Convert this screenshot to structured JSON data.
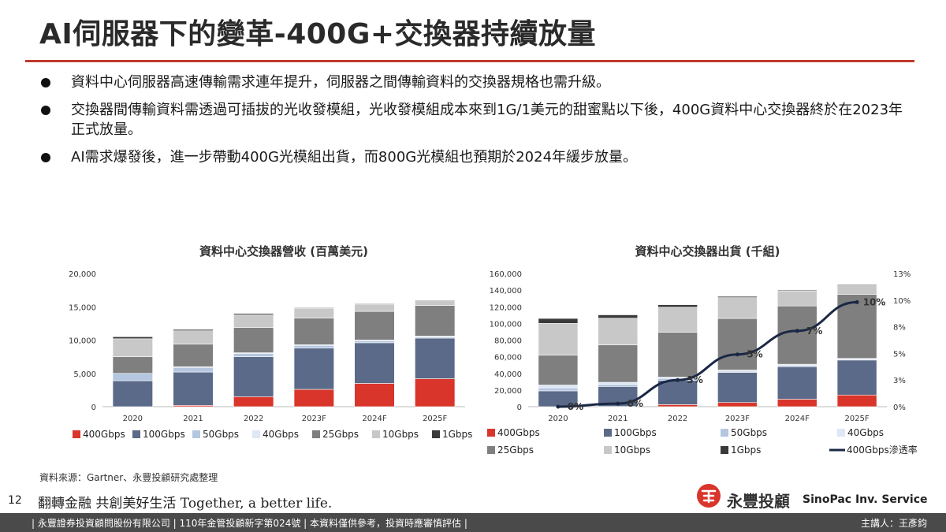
{
  "title": "AI伺服器下的變革-400G+交換器持續放量",
  "bullets": [
    "資料中心伺服器高速傳輸需求連年提升，伺服器之間傳輸資料的交換器規格也需升級。",
    "交換器間傳輸資料需透過可插拔的光收發模組，光收發模組成本來到1G/1美元的甜蜜點以下後，400G資料中心交換器終於在2023年正式放量。",
    "AI需求爆發後，進一步帶動400G光模組出貨，而800G光模組也預期於2024年緩步放量。"
  ],
  "chart_data": [
    {
      "type": "bar",
      "stacked": true,
      "title": "資料中心交換器營收 (百萬美元)",
      "categories": [
        "2020",
        "2021",
        "2022",
        "2023F",
        "2024F",
        "2025F"
      ],
      "ylim": [
        0,
        20000
      ],
      "yticks": [
        "0",
        "5,000",
        "10,000",
        "15,000",
        "20,000"
      ],
      "legend_position": "bottom",
      "series": [
        {
          "name": "400Gbps",
          "color": "#d9352b",
          "values": [
            0,
            200,
            1500,
            2600,
            3500,
            4200
          ]
        },
        {
          "name": "100Gbps",
          "color": "#5a6a88",
          "values": [
            3900,
            5000,
            6000,
            6200,
            6100,
            6100
          ]
        },
        {
          "name": "50Gbps",
          "color": "#b4c6e0",
          "values": [
            1100,
            700,
            500,
            400,
            300,
            200
          ]
        },
        {
          "name": "40Gbps",
          "color": "#dde7f5",
          "values": [
            0,
            100,
            100,
            100,
            100,
            100
          ]
        },
        {
          "name": "25Gbps",
          "color": "#7f7f7f",
          "values": [
            2500,
            3400,
            3800,
            4000,
            4300,
            4600
          ]
        },
        {
          "name": "10Gbps",
          "color": "#c8c8c8",
          "values": [
            2700,
            2000,
            1900,
            1500,
            1100,
            700
          ]
        },
        {
          "name": "1Gbps",
          "color": "#3a3a3a",
          "values": [
            300,
            200,
            200,
            100,
            100,
            100
          ]
        }
      ]
    },
    {
      "type": "bar",
      "stacked": true,
      "title": "資料中心交換器出貨 (千組)",
      "categories": [
        "2020",
        "2021",
        "2022",
        "2023F",
        "2024F",
        "2025F"
      ],
      "ylim": [
        0,
        160000
      ],
      "yticks": [
        "0",
        "20,000",
        "40,000",
        "60,000",
        "80,000",
        "100,000",
        "120,000",
        "140,000",
        "160,000"
      ],
      "y2lim": [
        0,
        13
      ],
      "y2ticks": [
        "0%",
        "3%",
        "5%",
        "8%",
        "10%",
        "13%"
      ],
      "legend_position": "bottom",
      "series": [
        {
          "name": "400Gbps",
          "color": "#d9352b",
          "values": [
            0,
            300,
            2500,
            5000,
            9000,
            14000
          ]
        },
        {
          "name": "100Gbps",
          "color": "#5a6a88",
          "values": [
            19000,
            24000,
            29000,
            36000,
            39000,
            42000
          ]
        },
        {
          "name": "50Gbps",
          "color": "#b4c6e0",
          "values": [
            3500,
            2500,
            2500,
            1500,
            1500,
            1000
          ]
        },
        {
          "name": "40Gbps",
          "color": "#dde7f5",
          "values": [
            3500,
            2500,
            1500,
            1500,
            1500,
            1000
          ]
        },
        {
          "name": "25Gbps",
          "color": "#7f7f7f",
          "values": [
            36000,
            45000,
            54000,
            62000,
            70000,
            77000
          ]
        },
        {
          "name": "10Gbps",
          "color": "#c8c8c8",
          "values": [
            38000,
            32000,
            30000,
            25000,
            18000,
            11000
          ]
        },
        {
          "name": "1Gbps",
          "color": "#3a3a3a",
          "values": [
            6000,
            4000,
            3000,
            1500,
            1000,
            1000
          ]
        }
      ],
      "line_series": {
        "name": "400Gbps滲透率",
        "color": "#1b2845",
        "axis": "right",
        "values": [
          0,
          0.3,
          2.6,
          5.1,
          7.4,
          10.2
        ],
        "labels": [
          "0%",
          "0%",
          "3%",
          "5%",
          "7%",
          "10%"
        ]
      }
    }
  ],
  "source": "資料來源：Gartner、永豐投顧研究處整理",
  "page_number": "12",
  "slogan": "翻轉金融  共創美好生活   Together, a better life.",
  "brand": {
    "cn": "永豐投顧",
    "en": "SinoPac Inv. Service",
    "color": "#d9352b"
  },
  "footer": {
    "left": "| 永豐證券投資顧問股份有限公司 | 110年金管投顧新字第024號 | 本資料僅供參考，投資時應審慎評估 |",
    "right": "主講人：王彥鈞"
  }
}
